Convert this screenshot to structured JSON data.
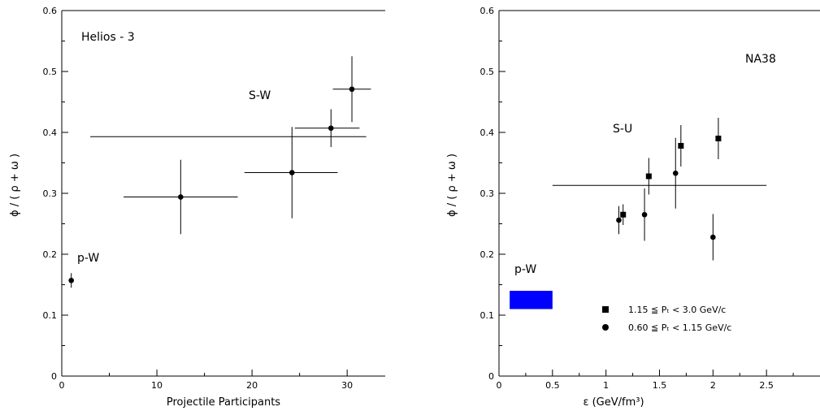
{
  "chart_data": [
    {
      "type": "scatter",
      "annotations": [
        "Helios - 3",
        "S-W",
        "p-W"
      ],
      "xlabel": "Projectile Participants",
      "ylabel": "ϕ / ( ρ + ω )",
      "xlim": [
        0,
        34
      ],
      "ylim": [
        0,
        0.6
      ],
      "xticks": [
        0,
        10,
        20,
        30
      ],
      "yticks": [
        0,
        0.1,
        0.2,
        0.3,
        0.4,
        0.5,
        0.6
      ],
      "ytick_labels": [
        "0",
        "0.1",
        "0.2",
        "0.3",
        "0.4",
        "0.5",
        "0.6"
      ],
      "series": [
        {
          "marker": "circle",
          "points": [
            {
              "x": 1.0,
              "y": 0.157,
              "xerr": [
                0,
                0
              ],
              "yerr": [
                0.012,
                0.012
              ]
            },
            {
              "x": 12.5,
              "y": 0.294,
              "xerr": [
                6.0,
                6.0
              ],
              "yerr": [
                0.061,
                0.061
              ]
            },
            {
              "x": 24.2,
              "y": 0.334,
              "xerr": [
                5.0,
                4.8
              ],
              "yerr": [
                0.075,
                0.075
              ]
            },
            {
              "x": 28.3,
              "y": 0.407,
              "xerr": [
                3.8,
                3.0
              ],
              "yerr": [
                0.031,
                0.031
              ]
            },
            {
              "x": 30.5,
              "y": 0.471,
              "xerr": [
                2.0,
                2.0
              ],
              "yerr": [
                0.054,
                0.054
              ]
            }
          ]
        }
      ],
      "hlines": [
        {
          "y": 0.393,
          "xmin": 3.0,
          "xmax": 32.0
        }
      ]
    },
    {
      "type": "scatter",
      "annotations": [
        "NA38",
        "S-U",
        "p-W"
      ],
      "xlabel": "ε  (GeV/fm³)",
      "ylabel": "ϕ / ( ρ + ω )",
      "xlim": [
        0,
        3.0
      ],
      "ylim": [
        0,
        0.6
      ],
      "xticks": [
        0,
        0.5,
        1,
        1.5,
        2,
        2.5
      ],
      "xtick_labels": [
        "0",
        "0.5",
        "1",
        "1.5",
        "2",
        "2.5"
      ],
      "yticks": [
        0,
        0.1,
        0.2,
        0.3,
        0.4,
        0.5,
        0.6
      ],
      "ytick_labels": [
        "0",
        "0.1",
        "0.2",
        "0.3",
        "0.4",
        "0.5",
        "0.6"
      ],
      "legend": [
        {
          "marker": "square",
          "label": "1.15 ≦ Pₜ < 3.0  GeV/c"
        },
        {
          "marker": "circle",
          "label": "0.60 ≦ Pₜ < 1.15  GeV/c"
        }
      ],
      "series": [
        {
          "marker": "square",
          "points": [
            {
              "x": 1.16,
              "y": 0.265,
              "yerr": [
                0.017,
                0.017
              ]
            },
            {
              "x": 1.4,
              "y": 0.328,
              "yerr": [
                0.03,
                0.03
              ]
            },
            {
              "x": 1.7,
              "y": 0.378,
              "yerr": [
                0.034,
                0.034
              ]
            },
            {
              "x": 2.05,
              "y": 0.39,
              "yerr": [
                0.034,
                0.034
              ]
            }
          ]
        },
        {
          "marker": "circle",
          "points": [
            {
              "x": 1.12,
              "y": 0.256,
              "yerr": [
                0.023,
                0.023
              ]
            },
            {
              "x": 1.36,
              "y": 0.265,
              "yerr": [
                0.043,
                0.043
              ]
            },
            {
              "x": 1.65,
              "y": 0.333,
              "yerr": [
                0.058,
                0.058
              ]
            },
            {
              "x": 2.0,
              "y": 0.228,
              "yerr": [
                0.038,
                0.038
              ]
            }
          ]
        }
      ],
      "hlines": [
        {
          "y": 0.313,
          "xmin": 0.5,
          "xmax": 2.5
        }
      ],
      "bands": [
        {
          "xmin": 0.1,
          "xmax": 0.5,
          "ymin": 0.11,
          "ymax": 0.14,
          "color": "#0000ff"
        }
      ]
    }
  ]
}
